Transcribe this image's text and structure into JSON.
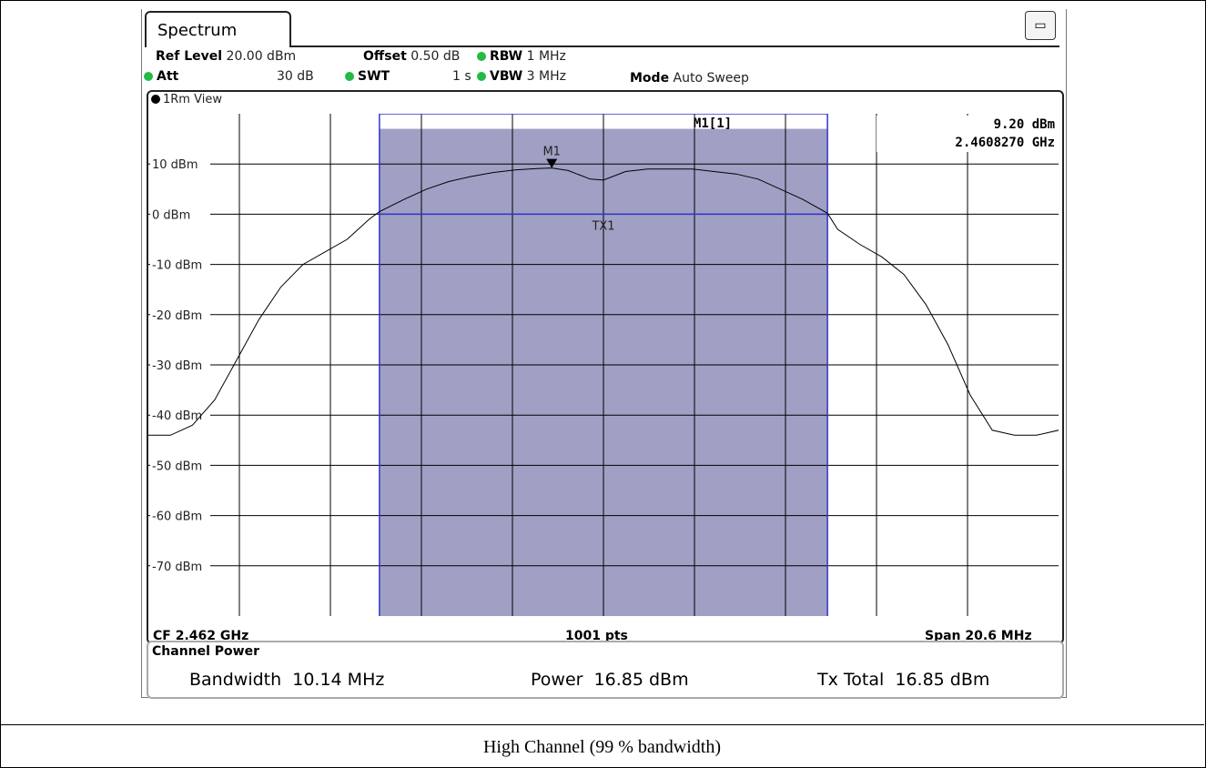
{
  "caption": "High Channel (99 % bandwidth)",
  "tab_label": "Spectrum",
  "params": {
    "ref_level_label": "Ref Level",
    "ref_level_value": "20.00 dBm",
    "offset_label": "Offset",
    "offset_value": "0.50 dB",
    "rbw_label": "RBW",
    "rbw_value": "1 MHz",
    "att_label": "Att",
    "att_value": "30 dB",
    "swt_label": "SWT",
    "swt_value": "1 s",
    "vbw_label": "VBW",
    "vbw_value": "3 MHz",
    "mode_label": "Mode",
    "mode_value": "Auto Sweep"
  },
  "view_label": "1Rm View",
  "marker": {
    "name": "M1[1]",
    "label": "M1",
    "level": "9.20 dBm",
    "frequency": "2.4608270 GHz"
  },
  "channel_label": "TX1",
  "footer": {
    "cf": "CF 2.462 GHz",
    "points": "1001 pts",
    "span": "Span 20.6 MHz"
  },
  "channel_power": {
    "title": "Channel Power",
    "bandwidth_label": "Bandwidth",
    "bandwidth_value": "10.14 MHz",
    "power_label": "Power",
    "power_value": "16.85 dBm",
    "total_label": "Tx Total",
    "total_value": "16.85 dBm"
  },
  "colors": {
    "channel_fill": "#a0a0c4",
    "channel_line": "#3333cc",
    "trace": "#000000"
  },
  "chart_data": {
    "type": "line",
    "x_unit": "MHz offset from CF",
    "xlim": [
      -10.3,
      10.3
    ],
    "ylim": [
      -80,
      20
    ],
    "ytick_labels": [
      "10 dBm",
      "0 dBm",
      "-10 dBm",
      "-20 dBm",
      "-30 dBm",
      "-40 dBm",
      "-50 dBm",
      "-60 dBm",
      "-70 dBm"
    ],
    "ytick_values": [
      10,
      0,
      -10,
      -20,
      -30,
      -40,
      -50,
      -60,
      -70
    ],
    "grid": true,
    "channel_band": [
      -5.07,
      5.07
    ],
    "channel_band_top": 17,
    "tx_level": 0,
    "marker": {
      "x": -1.17,
      "y": 9.2
    },
    "series": [
      {
        "x": [
          -10.3,
          -9.8,
          -9.3,
          -8.8,
          -8.3,
          -7.8,
          -7.3,
          -6.8,
          -6.3,
          -5.8,
          -5.3,
          -5.07,
          -4.5,
          -4,
          -3.5,
          -3,
          -2.5,
          -2,
          -1.5,
          -1.17,
          -0.8,
          -0.3,
          0,
          0.5,
          1,
          1.5,
          2,
          2.5,
          3,
          3.5,
          4,
          4.5,
          5.07,
          5.3,
          5.8,
          6.3,
          6.8,
          7.3,
          7.8,
          8.3,
          8.8,
          9.3,
          9.8,
          10.3
        ],
        "y": [
          -44,
          -44,
          -42,
          -37,
          -29,
          -21,
          -14.5,
          -10,
          -7.5,
          -5,
          -1,
          0.5,
          3,
          5,
          6.5,
          7.5,
          8.3,
          8.8,
          9.1,
          9.2,
          8.7,
          7,
          6.8,
          8.5,
          9,
          9,
          9,
          8.5,
          8,
          7,
          5,
          3,
          0.2,
          -3,
          -6,
          -8.5,
          -12,
          -18,
          -26,
          -36,
          -43,
          -44,
          -44,
          -43
        ]
      }
    ]
  }
}
